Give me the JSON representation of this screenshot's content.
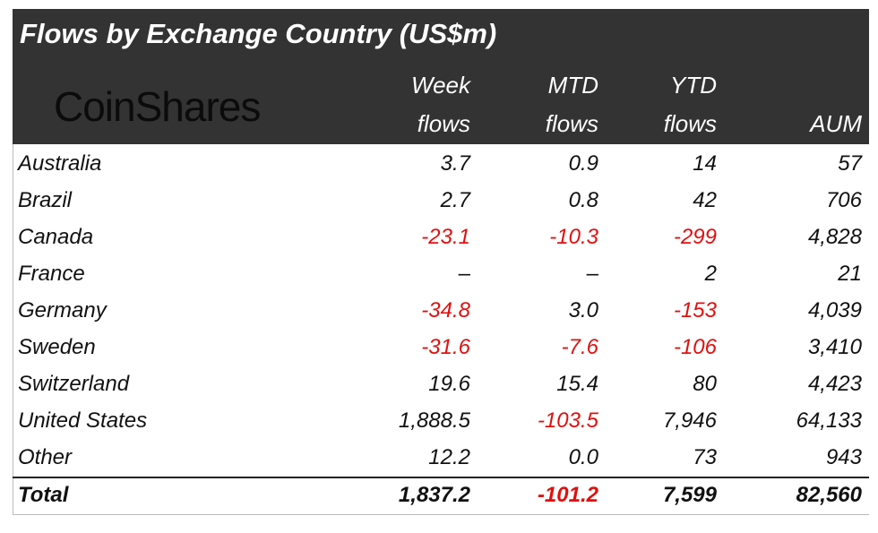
{
  "header": {
    "title": "Flows by Exchange Country (US$m)",
    "logo": "CoinShares",
    "columns": [
      [
        "Week",
        "flows"
      ],
      [
        "MTD",
        "flows"
      ],
      [
        "YTD",
        "flows"
      ],
      [
        "AUM"
      ]
    ]
  },
  "table": {
    "rows": [
      [
        "Australia",
        "3.7",
        "0.9",
        "14",
        "57"
      ],
      [
        "Brazil",
        "2.7",
        "0.8",
        "42",
        "706"
      ],
      [
        "Canada",
        "-23.1",
        "-10.3",
        "-299",
        "4,828"
      ],
      [
        "France",
        "–",
        "–",
        "2",
        "21"
      ],
      [
        "Germany",
        "-34.8",
        "3.0",
        "-153",
        "4,039"
      ],
      [
        "Sweden",
        "-31.6",
        "-7.6",
        "-106",
        "3,410"
      ],
      [
        "Switzerland",
        "19.6",
        "15.4",
        "80",
        "4,423"
      ],
      [
        "United States",
        "1,888.5",
        "-103.5",
        "7,946",
        "64,133"
      ],
      [
        "Other",
        "12.2",
        "0.0",
        "73",
        "943"
      ]
    ],
    "total": [
      "Total",
      "1,837.2",
      "-101.2",
      "7,599",
      "82,560"
    ]
  }
}
